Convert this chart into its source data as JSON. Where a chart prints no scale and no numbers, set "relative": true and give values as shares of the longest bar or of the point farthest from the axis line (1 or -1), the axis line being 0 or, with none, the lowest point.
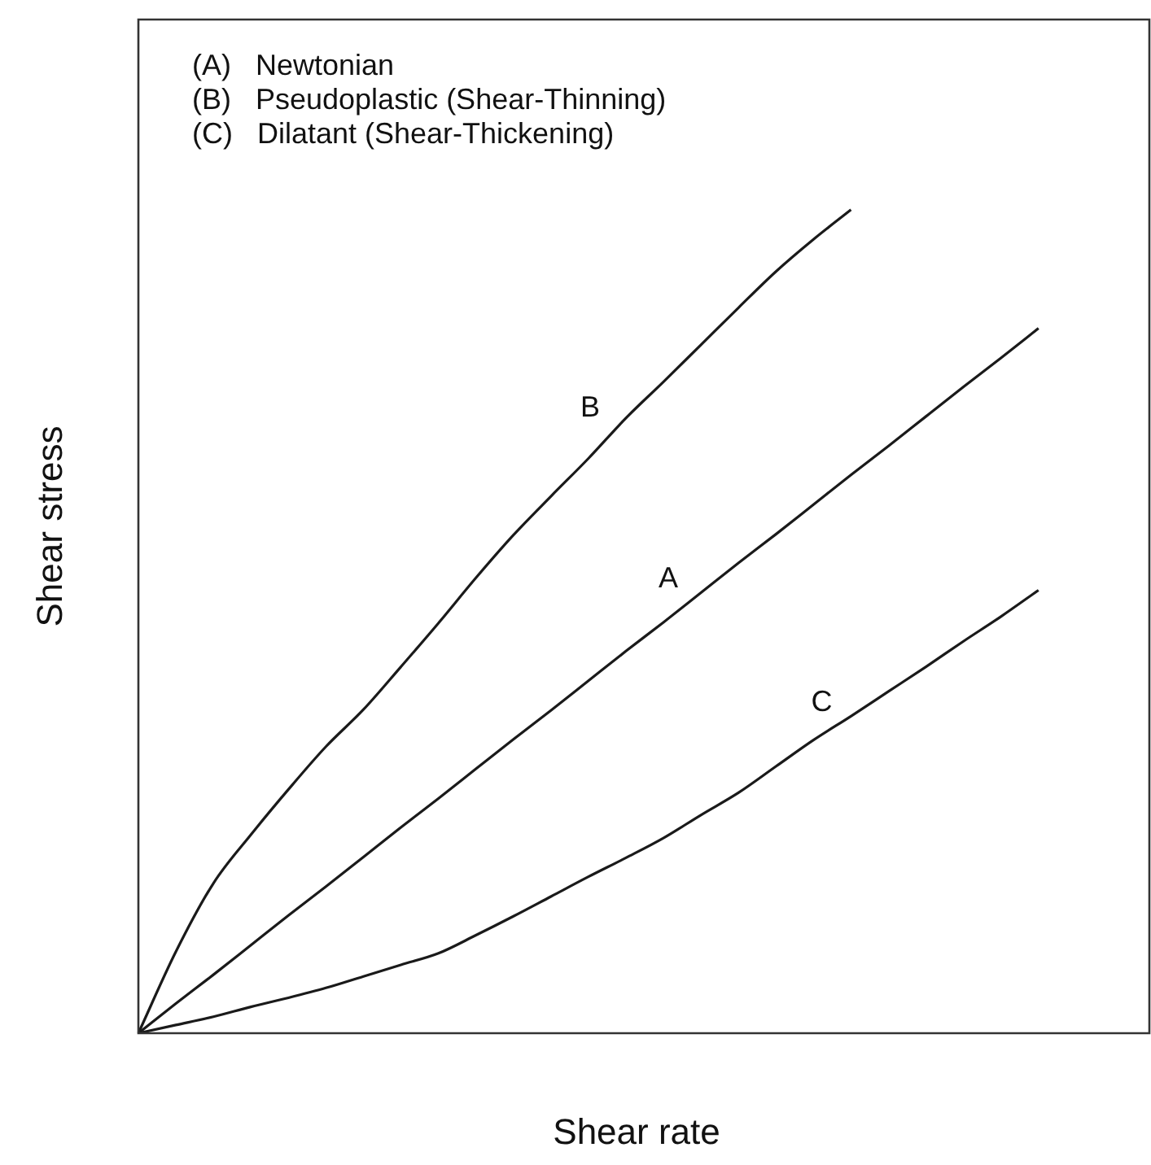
{
  "chart_data": {
    "type": "line",
    "relative": true,
    "xlabel": "Shear rate",
    "ylabel": "Shear stress",
    "annotations": [
      "(A)   Newtonian",
      "(B)   Pseudoplastic (Shear-Thinning)",
      "(C)   Dilatant (Shear-Thickening)"
    ],
    "categories": [
      null,
      null,
      null,
      null,
      null,
      null,
      null,
      null,
      null,
      null,
      null,
      null,
      null,
      null,
      null,
      null,
      null,
      null,
      null,
      null,
      null,
      null,
      null,
      null,
      null,
      null,
      null,
      null
    ],
    "series": [
      {
        "name": "B",
        "color": "#1a1a1a",
        "values": [
          0,
          0.099,
          0.182,
          0.241,
          0.296,
          0.348,
          0.393,
          0.445,
          0.498,
          0.553,
          0.605,
          0.652,
          0.698,
          0.747,
          0.791,
          0.836,
          0.881,
          0.925,
          0.964,
          1,
          null,
          null,
          null,
          null,
          null,
          null,
          null,
          null
        ]
      },
      {
        "name": "A",
        "color": "#1a1a1a",
        "values": [
          0,
          0.036,
          0.071,
          0.107,
          0.143,
          0.178,
          0.214,
          0.25,
          0.285,
          0.321,
          0.357,
          0.392,
          0.428,
          0.464,
          0.499,
          0.535,
          0.571,
          0.606,
          0.642,
          0.678,
          0.713,
          0.749,
          0.785,
          0.82,
          0.856,
          null,
          null,
          null
        ]
      },
      {
        "name": "C",
        "color": "#1a1a1a",
        "values": [
          0,
          0.01,
          0.02,
          0.032,
          0.043,
          0.055,
          0.069,
          0.083,
          0.097,
          0.119,
          0.142,
          0.166,
          0.19,
          0.213,
          0.237,
          0.265,
          0.292,
          0.324,
          0.356,
          0.385,
          0.415,
          0.445,
          0.476,
          0.506,
          0.538,
          null,
          null,
          null
        ]
      }
    ]
  }
}
